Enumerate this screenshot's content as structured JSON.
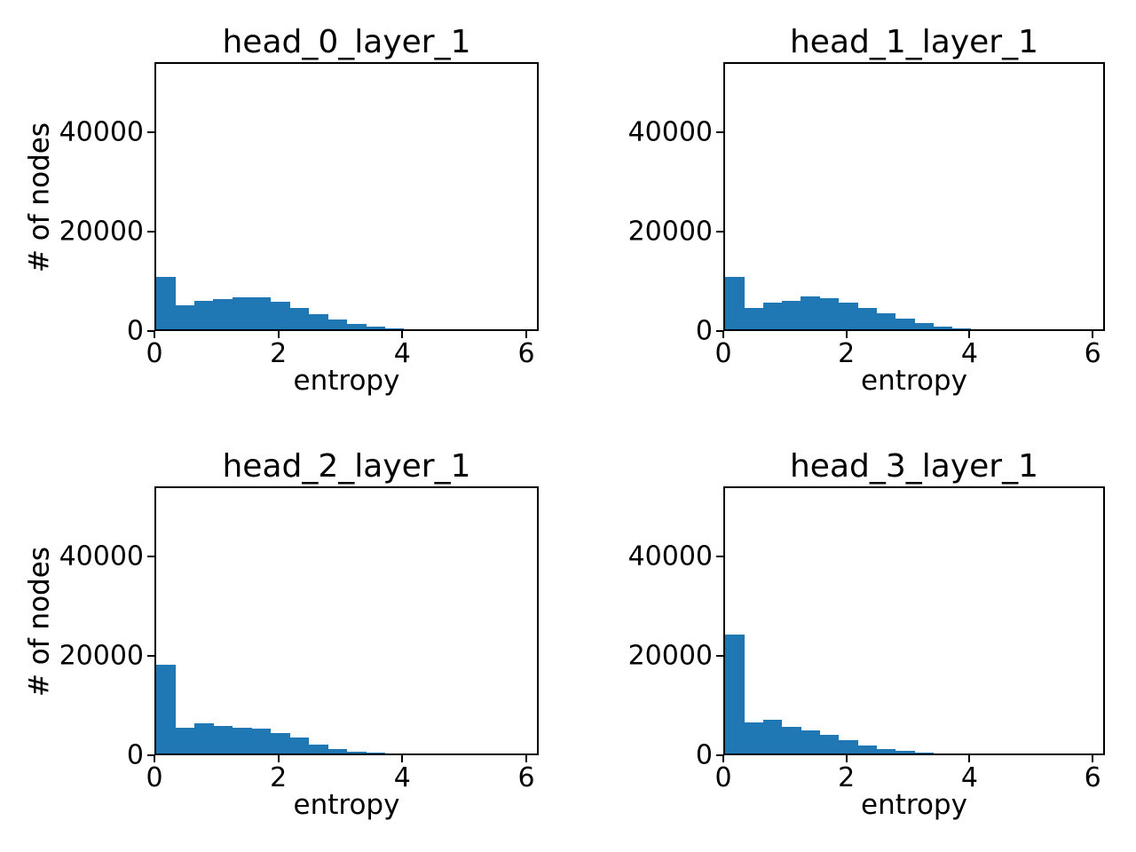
{
  "figure": {
    "background": "#ffffff",
    "bar_color": "#1f77b4",
    "axis_color": "#000000"
  },
  "chart_data": [
    {
      "type": "bar",
      "subtype": "histogram",
      "title": "head_0_layer_1",
      "xlabel": "entropy",
      "ylabel": "# of nodes",
      "xlim": [
        0,
        6.2
      ],
      "ylim": [
        0,
        54000
      ],
      "xticks": [
        0,
        2,
        4,
        6
      ],
      "yticks": [
        0,
        20000,
        40000
      ],
      "grid": false,
      "legend": false,
      "bin_start": 0,
      "bin_width": 0.31,
      "counts": [
        10700,
        4800,
        5800,
        6200,
        6500,
        6500,
        5600,
        4300,
        3050,
        2000,
        1000,
        480,
        130,
        0,
        0,
        0,
        0,
        0,
        0,
        0
      ]
    },
    {
      "type": "bar",
      "subtype": "histogram",
      "title": "head_1_layer_1",
      "xlabel": "entropy",
      "ylabel": "# of nodes",
      "xlim": [
        0,
        6.2
      ],
      "ylim": [
        0,
        54000
      ],
      "xticks": [
        0,
        2,
        4,
        6
      ],
      "yticks": [
        0,
        20000,
        40000
      ],
      "grid": false,
      "legend": false,
      "bin_start": 0,
      "bin_width": 0.31,
      "counts": [
        10700,
        4300,
        5500,
        5800,
        6600,
        6400,
        5450,
        4250,
        3300,
        2100,
        1200,
        600,
        240,
        90,
        0,
        0,
        0,
        0,
        0,
        0
      ]
    },
    {
      "type": "bar",
      "subtype": "histogram",
      "title": "head_2_layer_1",
      "xlabel": "entropy",
      "ylabel": "# of nodes",
      "xlim": [
        0,
        6.2
      ],
      "ylim": [
        0,
        54000
      ],
      "xticks": [
        0,
        2,
        4,
        6
      ],
      "yticks": [
        0,
        20000,
        40000
      ],
      "grid": false,
      "legend": false,
      "bin_start": 0,
      "bin_width": 0.31,
      "counts": [
        18100,
        5150,
        6150,
        5650,
        5250,
        5000,
        4150,
        3250,
        1850,
        950,
        420,
        180,
        60,
        0,
        0,
        0,
        0,
        0,
        0,
        0
      ]
    },
    {
      "type": "bar",
      "subtype": "histogram",
      "title": "head_3_layer_1",
      "xlabel": "entropy",
      "ylabel": "# of nodes",
      "xlim": [
        0,
        6.2
      ],
      "ylim": [
        0,
        54000
      ],
      "xticks": [
        0,
        2,
        4,
        6
      ],
      "yticks": [
        0,
        20000,
        40000
      ],
      "grid": false,
      "legend": false,
      "bin_start": 0,
      "bin_width": 0.31,
      "counts": [
        24200,
        6400,
        6800,
        5500,
        4650,
        3800,
        2700,
        1550,
        850,
        500,
        230,
        80,
        0,
        0,
        0,
        0,
        0,
        0,
        0,
        0
      ]
    }
  ]
}
